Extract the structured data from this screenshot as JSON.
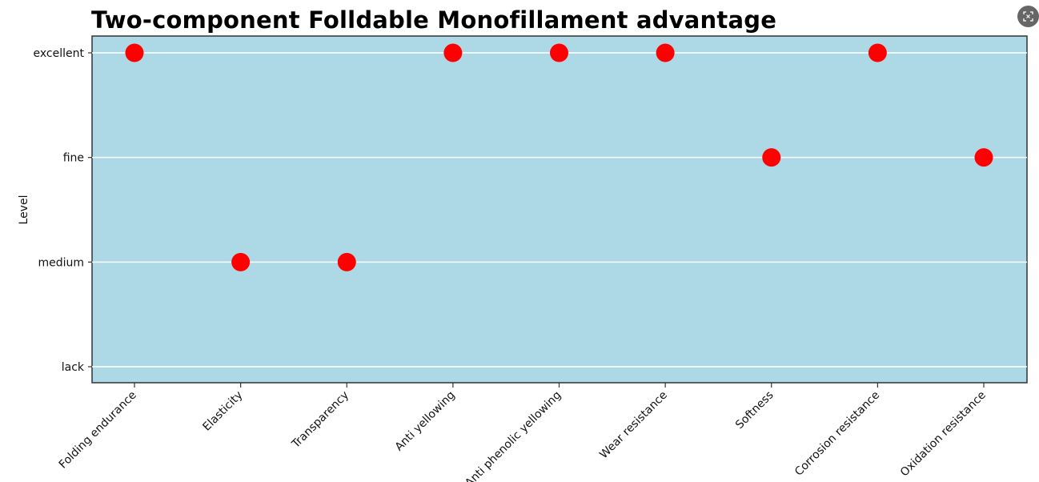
{
  "chart_data": {
    "type": "scatter",
    "title": "Two-component Folldable Monofillament advantage",
    "xlabel": "",
    "ylabel": "Level",
    "categories": [
      "Folding endurance",
      "Elasticity",
      "Transparency",
      "Anti yellowing",
      "Anti phenolic yellowing",
      "Wear resistance",
      "Softness",
      "Corrosion resistance",
      "Oxidation resistance"
    ],
    "y_levels": [
      "lack",
      "medium",
      "fine",
      "excellent"
    ],
    "values": [
      "excellent",
      "medium",
      "medium",
      "excellent",
      "excellent",
      "excellent",
      "fine",
      "excellent",
      "fine"
    ],
    "grid": "horizontal",
    "colors": {
      "background": "#add8e6",
      "marker": "#ff0000",
      "grid": "#ffffff"
    }
  },
  "ui": {
    "expand_icon": "expand-icon"
  }
}
